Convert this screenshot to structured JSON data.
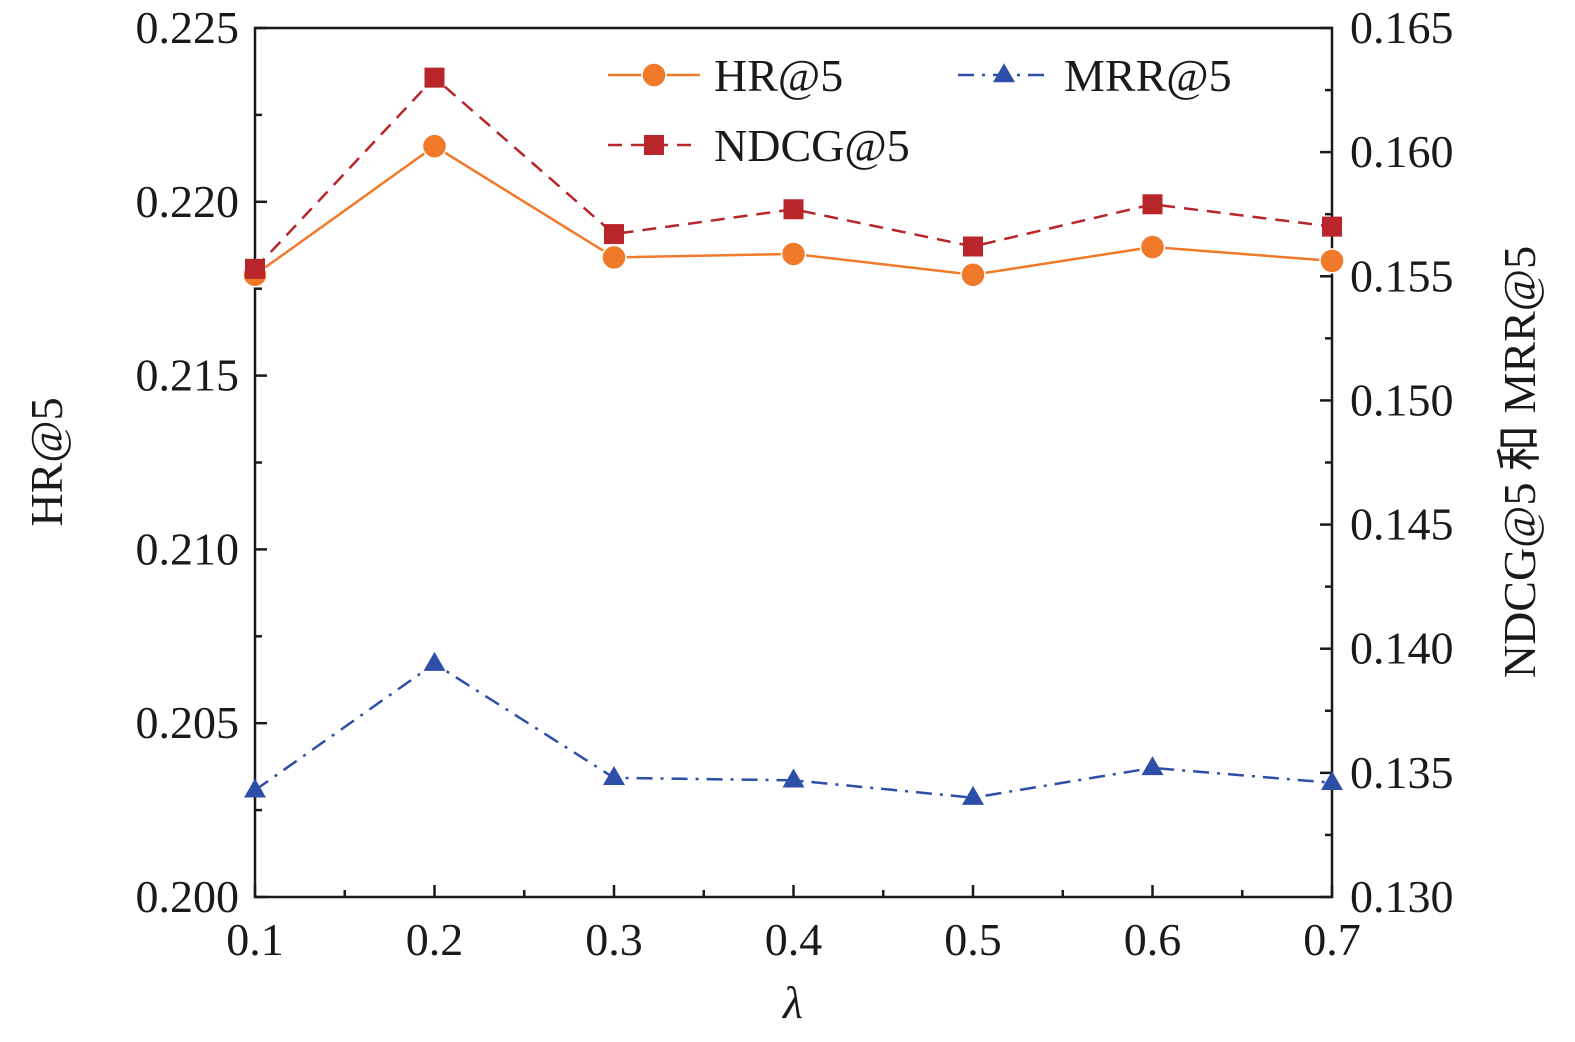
{
  "chart_data": {
    "type": "line",
    "title": "",
    "xlabel": "λ",
    "ylabel_left": "HR@5",
    "ylabel_right": "NDCG@5 和 MRR@5",
    "x": [
      0.1,
      0.2,
      0.3,
      0.4,
      0.5,
      0.6,
      0.7
    ],
    "x_tick_labels": [
      "0.1",
      "0.2",
      "0.3",
      "0.4",
      "0.5",
      "0.6",
      "0.7"
    ],
    "xlim": [
      0.1,
      0.7
    ],
    "ylim_left": [
      0.2,
      0.225
    ],
    "ylim_right": [
      0.13,
      0.165
    ],
    "y_left_tick_labels": [
      "0.200",
      "0.205",
      "0.210",
      "0.215",
      "0.220",
      "0.225"
    ],
    "y_left_tick_values": [
      0.2,
      0.205,
      0.21,
      0.215,
      0.22,
      0.225
    ],
    "y_right_tick_labels": [
      "0.130",
      "0.135",
      "0.140",
      "0.145",
      "0.150",
      "0.155",
      "0.160",
      "0.165"
    ],
    "y_right_tick_values": [
      0.13,
      0.135,
      0.14,
      0.145,
      0.15,
      0.155,
      0.16,
      0.165
    ],
    "legend_position": "top-right",
    "series": [
      {
        "name": "HR@5",
        "axis": "left",
        "values": [
          0.2179,
          0.2216,
          0.2184,
          0.2185,
          0.2179,
          0.2187,
          0.2183
        ],
        "color": "#f07a2a",
        "marker": "circle",
        "dash": "solid"
      },
      {
        "name": "NDCG@5",
        "axis": "right",
        "values": [
          0.1553,
          0.163,
          0.1567,
          0.1577,
          0.1562,
          0.1579,
          0.157
        ],
        "color": "#b8262b",
        "marker": "square",
        "dash": "dashed"
      },
      {
        "name": "MRR@5",
        "axis": "right",
        "values": [
          0.1343,
          0.1394,
          0.1348,
          0.1347,
          0.134,
          0.1352,
          0.1346
        ],
        "color": "#2e4fa8",
        "marker": "triangle",
        "dash": "dashdot"
      }
    ]
  }
}
